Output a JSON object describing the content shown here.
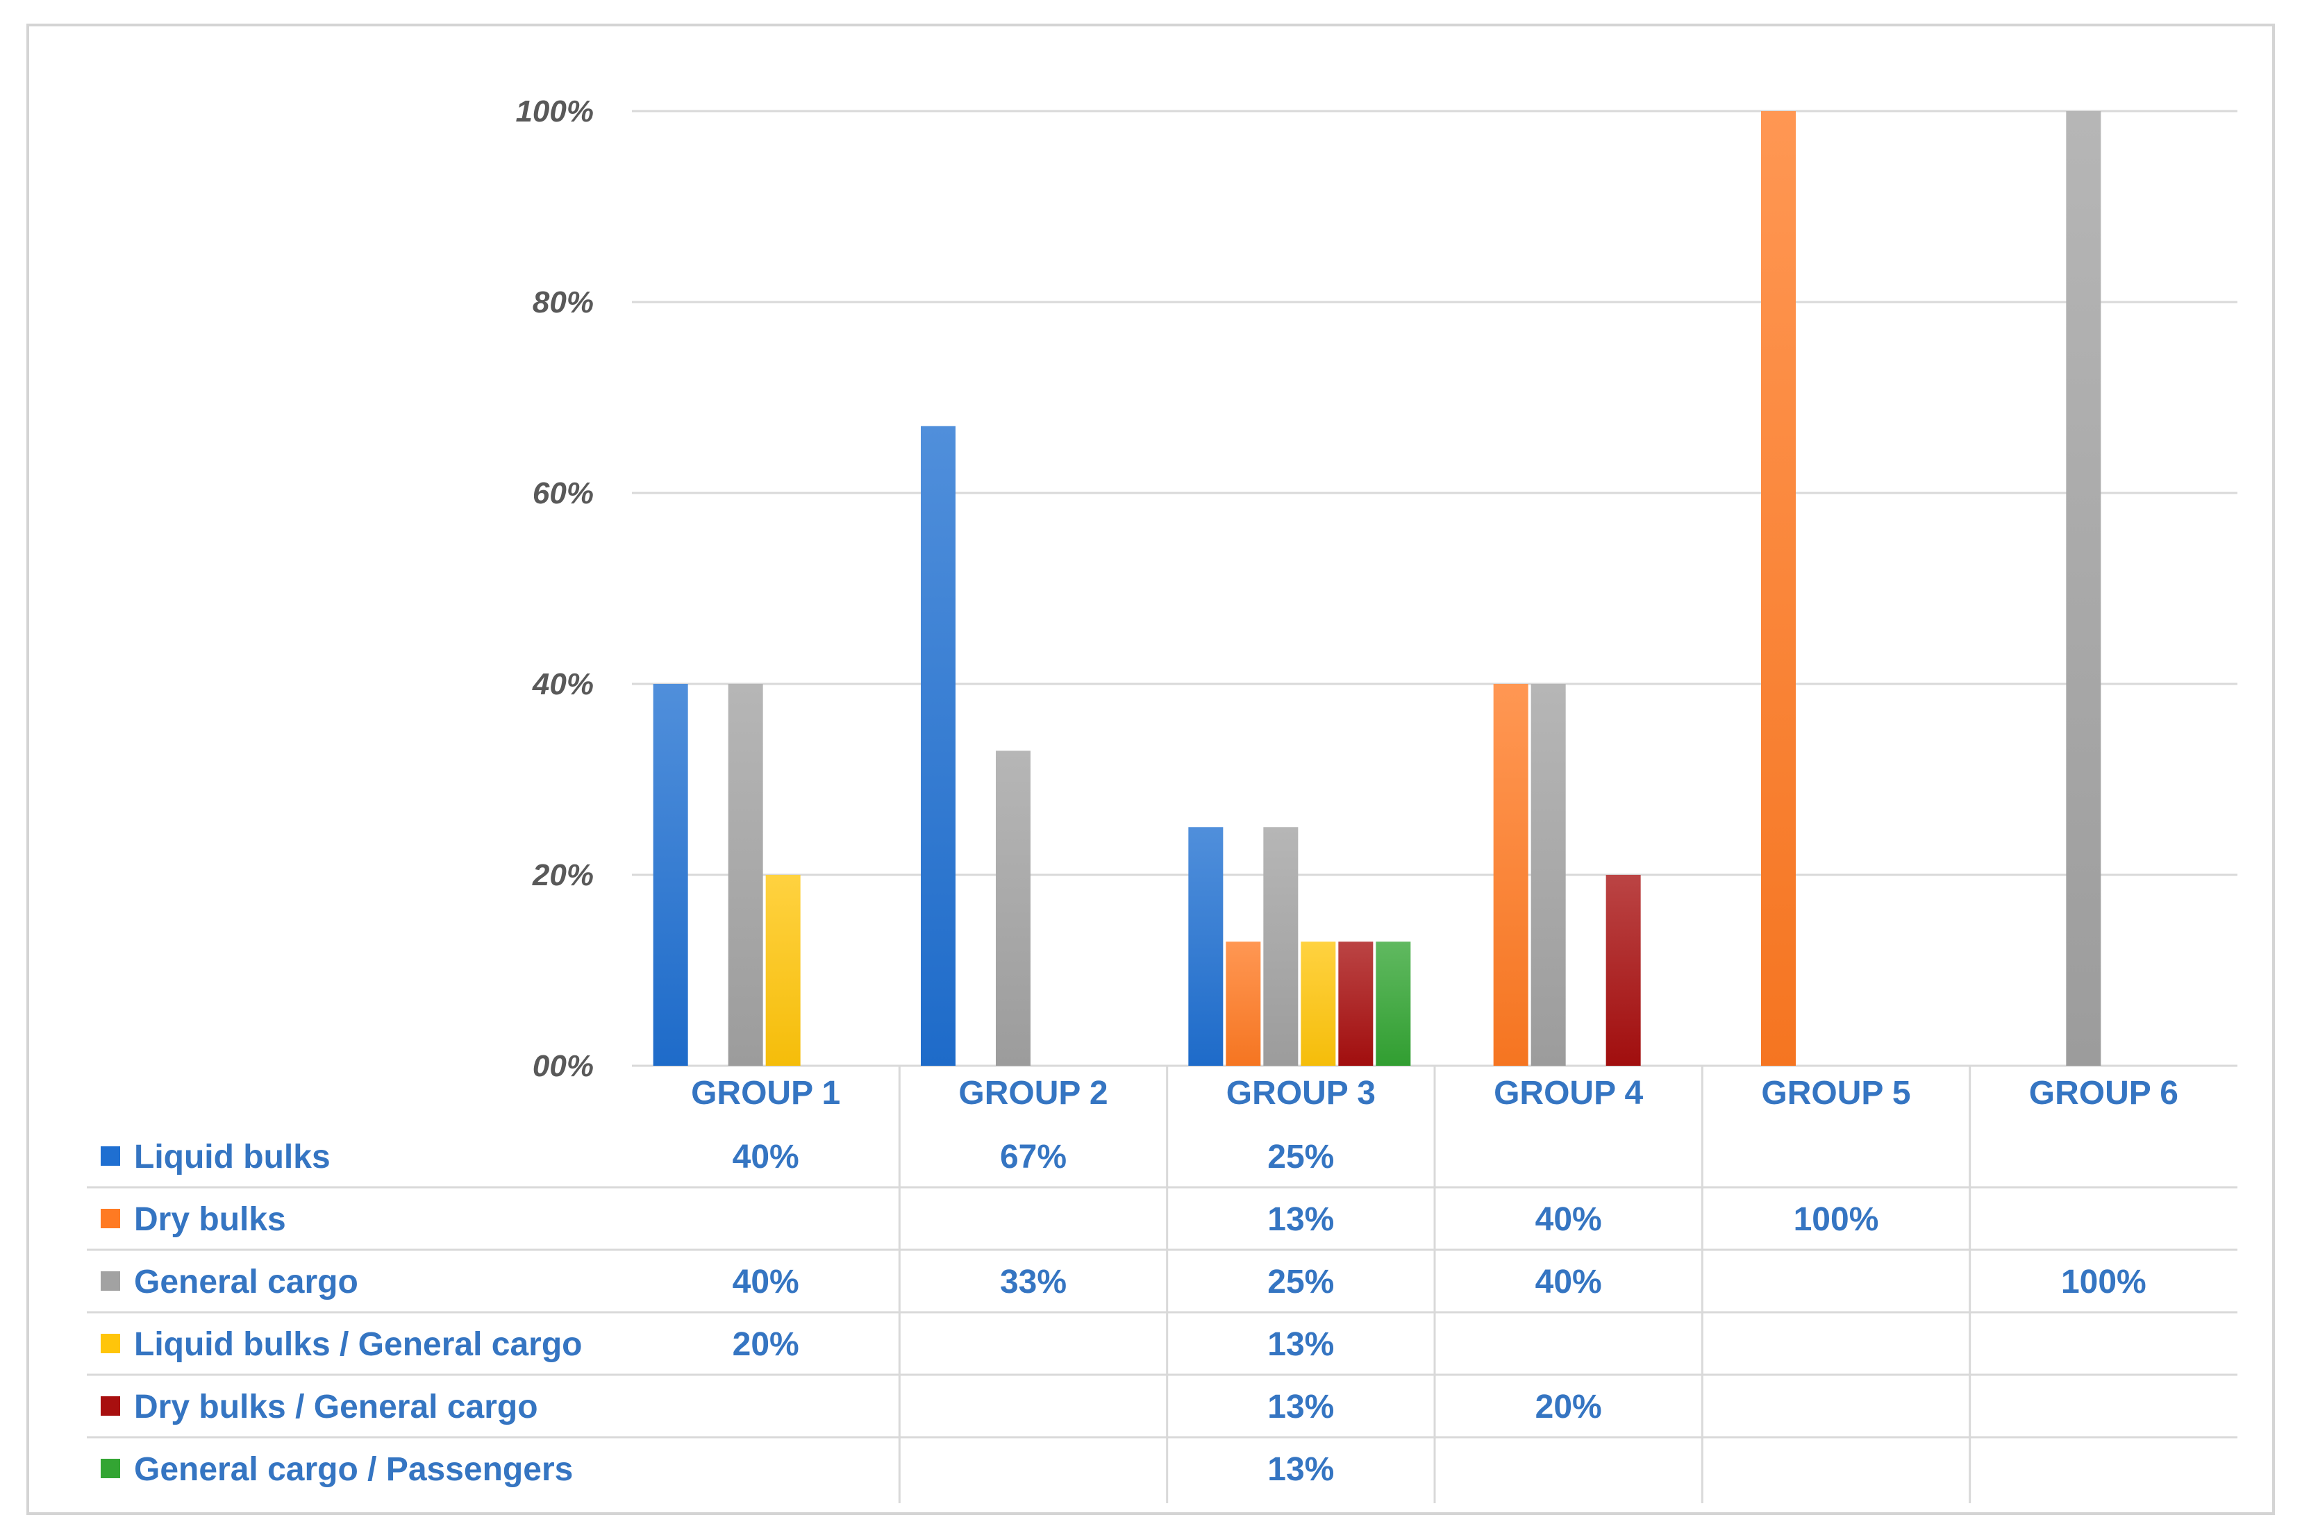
{
  "chart_data": {
    "type": "bar",
    "title": "",
    "xlabel": "",
    "ylabel": "",
    "ylim": [
      0,
      100
    ],
    "yticks": [
      {
        "value": 0,
        "label": "00%"
      },
      {
        "value": 20,
        "label": "20%"
      },
      {
        "value": 40,
        "label": "40%"
      },
      {
        "value": 60,
        "label": "60%"
      },
      {
        "value": 80,
        "label": "80%"
      },
      {
        "value": 100,
        "label": "100%"
      }
    ],
    "grid": true,
    "legend_placement": "data table below chart",
    "label_color": "#3575c2",
    "categories": [
      "GROUP 1",
      "GROUP 2",
      "GROUP 3",
      "GROUP 4",
      "GROUP 5",
      "GROUP 6"
    ],
    "series": [
      {
        "name": "Liquid bulks",
        "color": "#1f6fd1",
        "values": [
          40,
          67,
          25,
          null,
          null,
          null
        ],
        "labels": [
          "40%",
          "67%",
          "25%",
          "",
          "",
          ""
        ]
      },
      {
        "name": "Dry bulks",
        "color": "#ff7a22",
        "values": [
          null,
          null,
          13,
          40,
          100,
          null
        ],
        "labels": [
          "",
          "",
          "13%",
          "40%",
          "100%",
          ""
        ]
      },
      {
        "name": "General cargo",
        "color": "#a2a2a2",
        "values": [
          40,
          33,
          25,
          40,
          null,
          100
        ],
        "labels": [
          "40%",
          "33%",
          "25%",
          "40%",
          "",
          "100%"
        ]
      },
      {
        "name": "Liquid bulks / General cargo",
        "color": "#ffc50a",
        "values": [
          20,
          null,
          13,
          null,
          null,
          null
        ],
        "labels": [
          "20%",
          "",
          "13%",
          "",
          "",
          ""
        ]
      },
      {
        "name": "Dry bulks / General cargo",
        "color": "#a80f0f",
        "values": [
          null,
          null,
          13,
          20,
          null,
          null
        ],
        "labels": [
          "",
          "",
          "13%",
          "20%",
          "",
          ""
        ]
      },
      {
        "name": "General cargo / Passengers",
        "color": "#33a533",
        "values": [
          null,
          null,
          13,
          null,
          null,
          null
        ],
        "labels": [
          "",
          "",
          "13%",
          "",
          "",
          ""
        ]
      }
    ]
  }
}
